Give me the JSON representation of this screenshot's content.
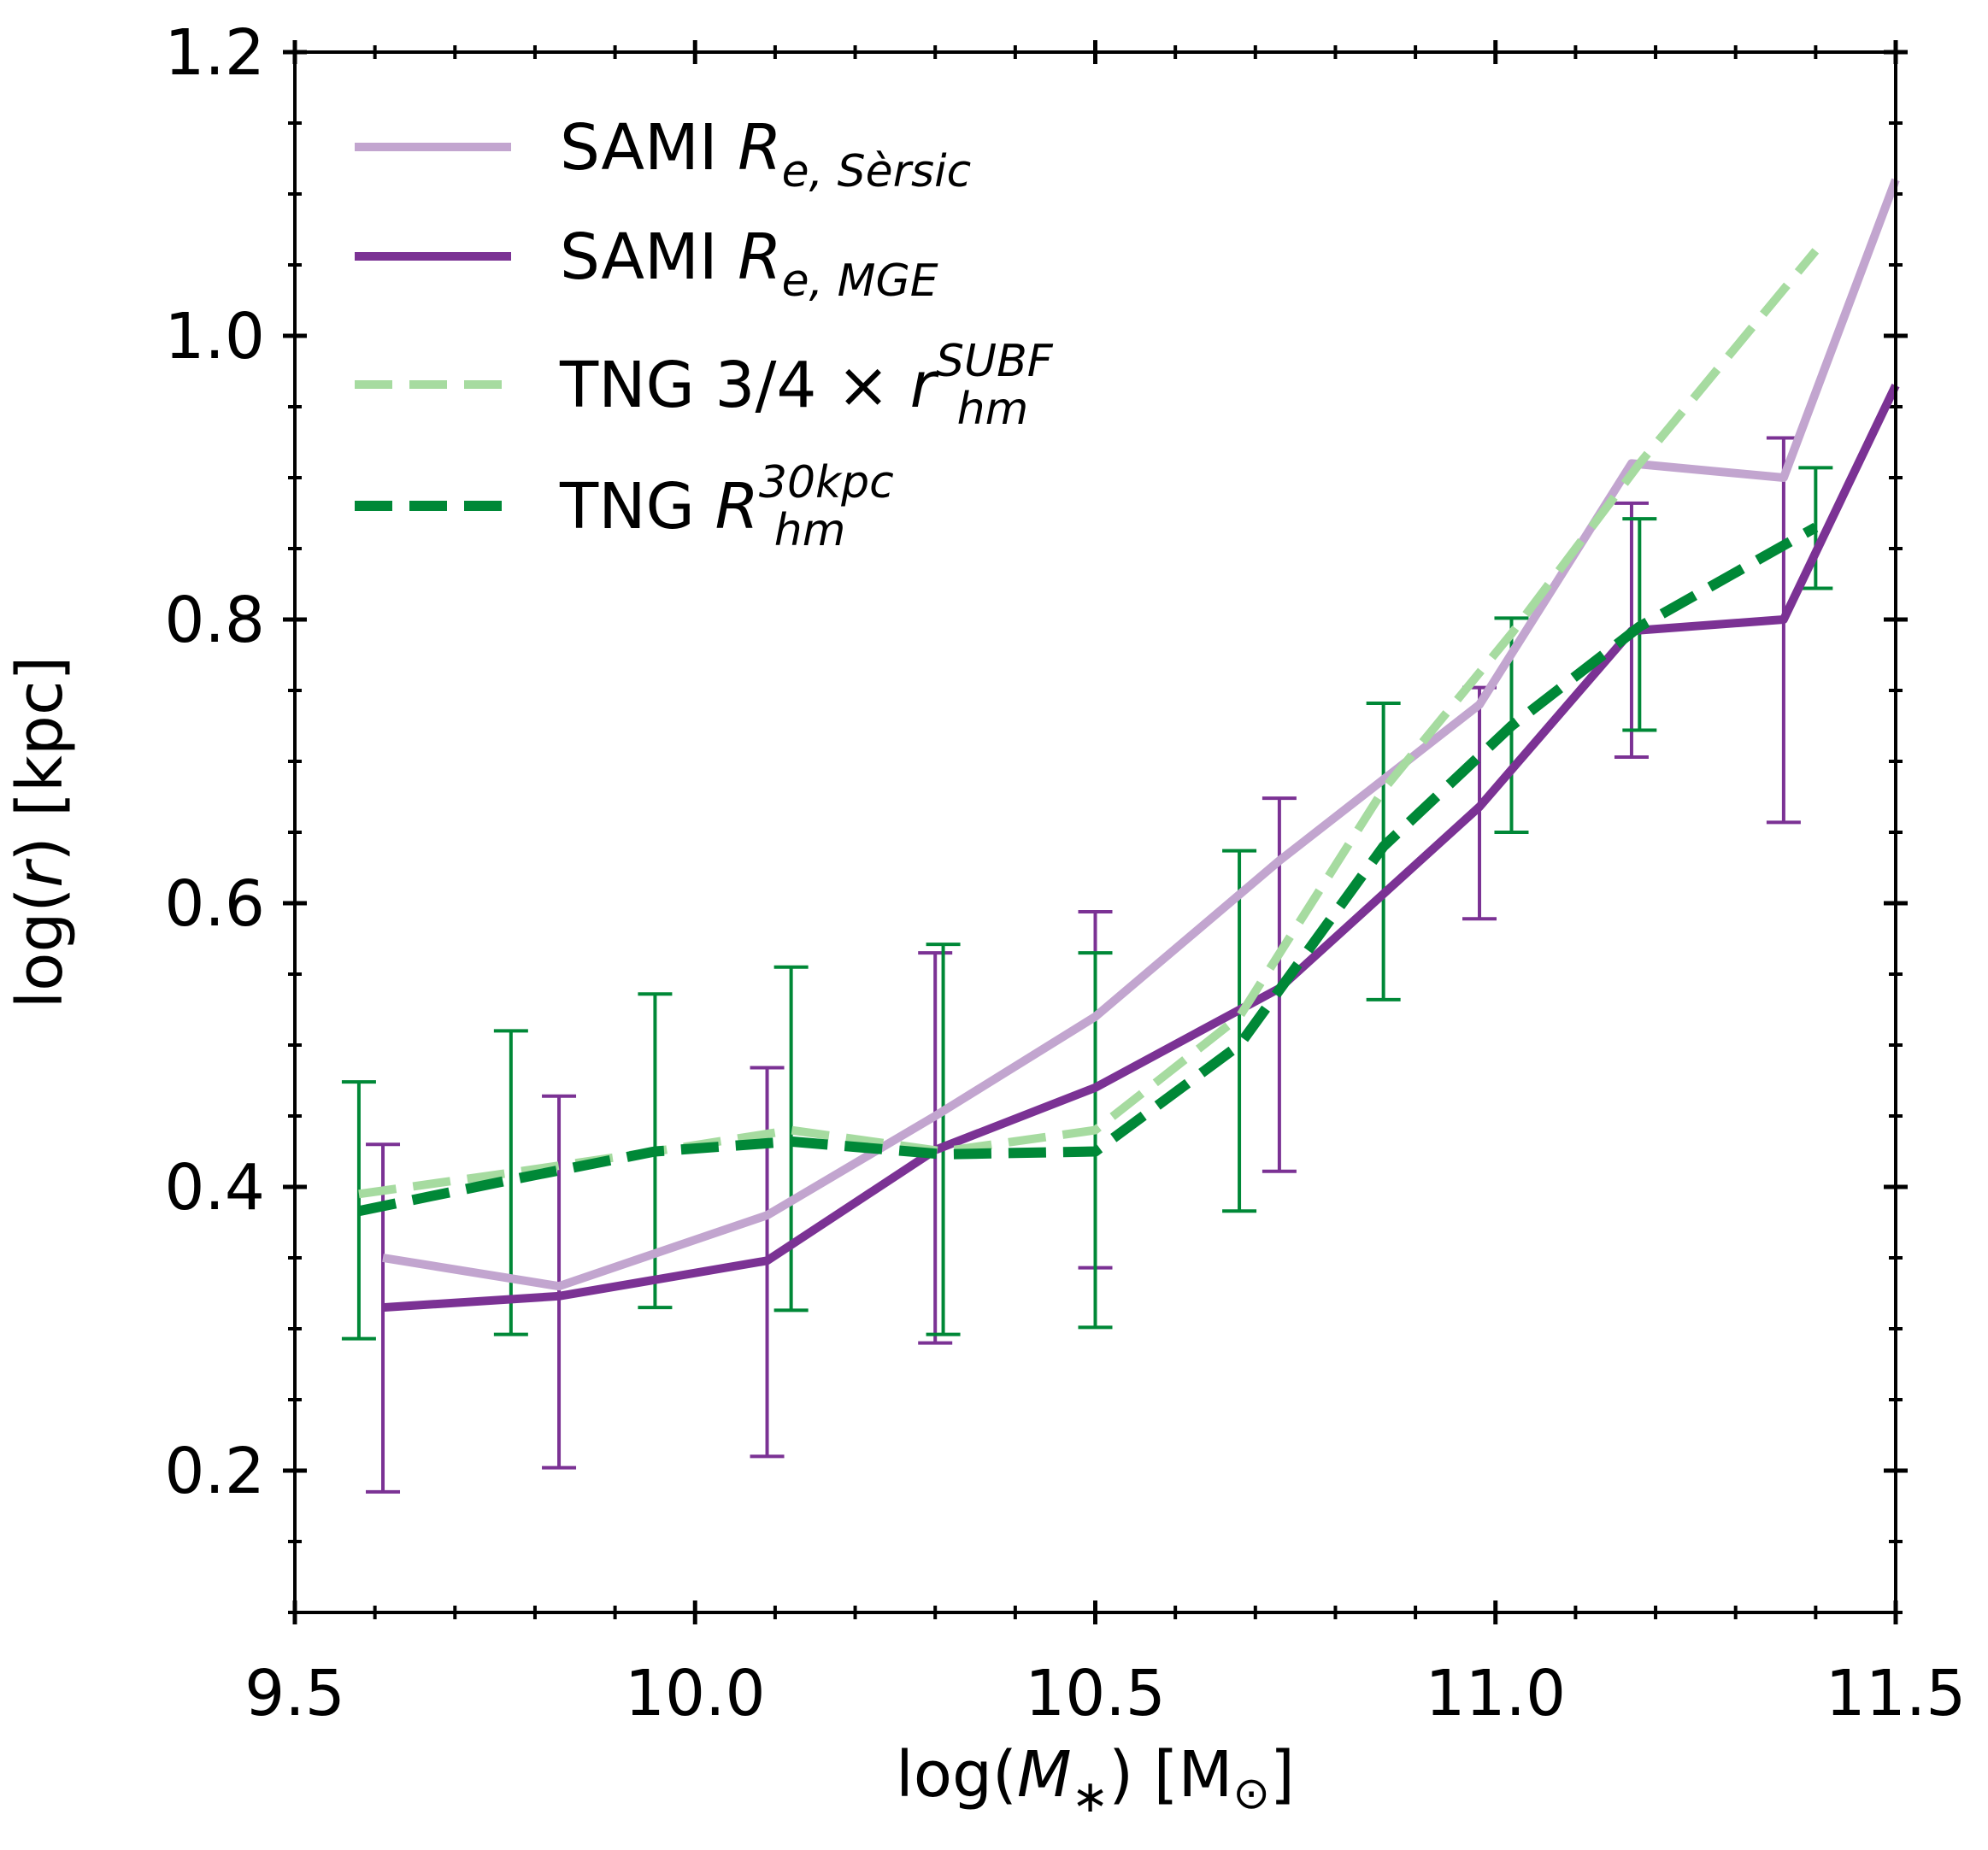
{
  "chart_data": {
    "type": "line",
    "xlabel": "log(M*) [M⊙]",
    "ylabel": "log(r) [kpc]",
    "xlim": [
      9.5,
      11.5
    ],
    "ylim": [
      0.1,
      1.2
    ],
    "x_ticks": [
      9.5,
      10.0,
      10.5,
      11.0,
      11.5
    ],
    "x_tick_labels": [
      "9.5",
      "10.0",
      "10.5",
      "11.0",
      "11.5"
    ],
    "y_ticks": [
      0.2,
      0.4,
      0.6,
      0.8,
      1.0,
      1.2
    ],
    "y_tick_labels": [
      "0.2",
      "0.4",
      "0.6",
      "0.8",
      "1.0",
      "1.2"
    ],
    "grid": false,
    "legend_position": "top-left",
    "legend": [
      {
        "key": "sami_sersic",
        "base": "SAMI ",
        "sym": "R",
        "sub": "e, Sèrsic",
        "sup": ""
      },
      {
        "key": "sami_mge",
        "base": "SAMI ",
        "sym": "R",
        "sub": "e, MGE",
        "sup": ""
      },
      {
        "key": "tng_subf",
        "base": "TNG 3/4 × ",
        "sym": "r",
        "sub": "hm",
        "sup": "SUBF"
      },
      {
        "key": "tng_30kpc",
        "base": "TNG ",
        "sym": "R",
        "sub": "hm",
        "sup": "30kpc"
      }
    ],
    "series": [
      {
        "key": "sami_sersic",
        "color": "#c2a5cf",
        "dashed": false,
        "width": 10,
        "x": [
          9.61,
          9.83,
          10.09,
          10.3,
          10.5,
          10.73,
          10.98,
          11.17,
          11.36,
          11.5
        ],
        "y": [
          0.35,
          0.33,
          0.38,
          0.45,
          0.52,
          0.63,
          0.74,
          0.91,
          0.9,
          1.11
        ]
      },
      {
        "key": "sami_mge",
        "color": "#7b3294",
        "dashed": false,
        "width": 10,
        "x": [
          9.61,
          9.83,
          10.09,
          10.3,
          10.5,
          10.73,
          10.98,
          11.17,
          11.36,
          11.5
        ],
        "y": [
          0.315,
          0.323,
          0.348,
          0.426,
          0.47,
          0.54,
          0.668,
          0.792,
          0.8,
          0.965
        ],
        "err_lo": [
          0.185,
          0.202,
          0.21,
          0.29,
          0.343,
          0.411,
          0.589,
          0.703,
          0.657
        ],
        "err_hi": [
          0.43,
          0.464,
          0.484,
          0.565,
          0.594,
          0.674,
          0.752,
          0.882,
          0.928
        ]
      },
      {
        "key": "tng_subf",
        "color": "#a6dba0",
        "dashed": true,
        "width": 10,
        "x": [
          9.58,
          9.77,
          9.95,
          10.12,
          10.31,
          10.5,
          10.68,
          10.86,
          11.02,
          11.18,
          11.4
        ],
        "y": [
          0.395,
          0.41,
          0.425,
          0.44,
          0.425,
          0.44,
          0.52,
          0.68,
          0.79,
          0.91,
          1.06
        ]
      },
      {
        "key": "tng_30kpc",
        "color": "#008837",
        "dashed": true,
        "width": 12,
        "x": [
          9.58,
          9.77,
          9.95,
          10.12,
          10.31,
          10.5,
          10.68,
          10.86,
          11.02,
          11.18,
          11.4
        ],
        "y": [
          0.383,
          0.405,
          0.425,
          0.432,
          0.423,
          0.425,
          0.5,
          0.64,
          0.725,
          0.795,
          0.865
        ],
        "err_lo": [
          0.293,
          0.296,
          0.315,
          0.313,
          0.296,
          0.301,
          0.383,
          0.532,
          0.65,
          0.722,
          0.822
        ],
        "err_hi": [
          0.474,
          0.51,
          0.536,
          0.555,
          0.571,
          0.565,
          0.637,
          0.741,
          0.801,
          0.871,
          0.907
        ]
      }
    ]
  }
}
